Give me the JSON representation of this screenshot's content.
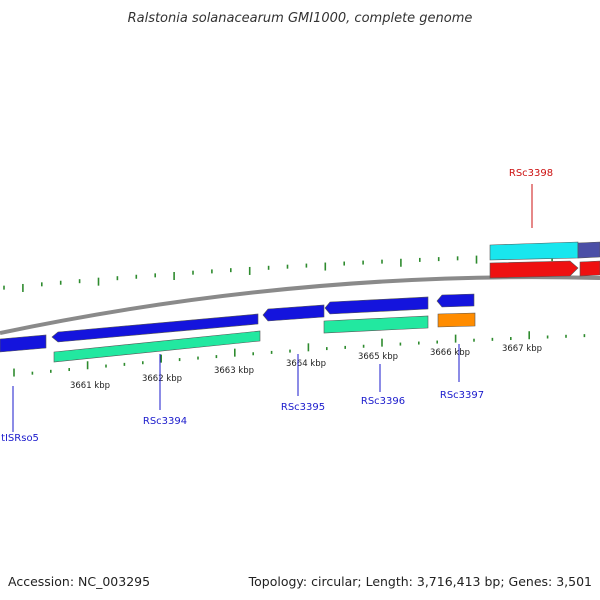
{
  "title": "Ralstonia solanacearum GMI1000, complete genome",
  "footer": {
    "accession": "Accession: NC_003295",
    "summary": "Topology: circular; Length: 3,716,413 bp; Genes: 3,501"
  },
  "colors": {
    "backbone": "#8a8a8a",
    "tick": "#2e8b2e",
    "label_blue": "#1a1acc",
    "label_red": "#cc1111",
    "gene_blue": "#1414dd",
    "gene_cyan": "#19e6ee",
    "gene_green": "#22e8a0",
    "gene_red": "#ee1111",
    "gene_orange": "#ff8c00",
    "gene_slate": "#4b4fa6"
  },
  "ticks": [
    "3661 kbp",
    "3662 kbp",
    "3663 kbp",
    "3664 kbp",
    "3665 kbp",
    "3666 kbp",
    "3667 kbp"
  ],
  "gene_labels": [
    {
      "id": "tISRso5",
      "text": "tISRso5",
      "color": "blue"
    },
    {
      "id": "RSc3394",
      "text": "RSc3394",
      "color": "blue"
    },
    {
      "id": "RSc3395",
      "text": "RSc3395",
      "color": "blue"
    },
    {
      "id": "RSc3396",
      "text": "RSc3396",
      "color": "blue"
    },
    {
      "id": "RSc3397",
      "text": "RSc3397",
      "color": "blue"
    },
    {
      "id": "RSc3398",
      "text": "RSc3398",
      "color": "red"
    }
  ]
}
